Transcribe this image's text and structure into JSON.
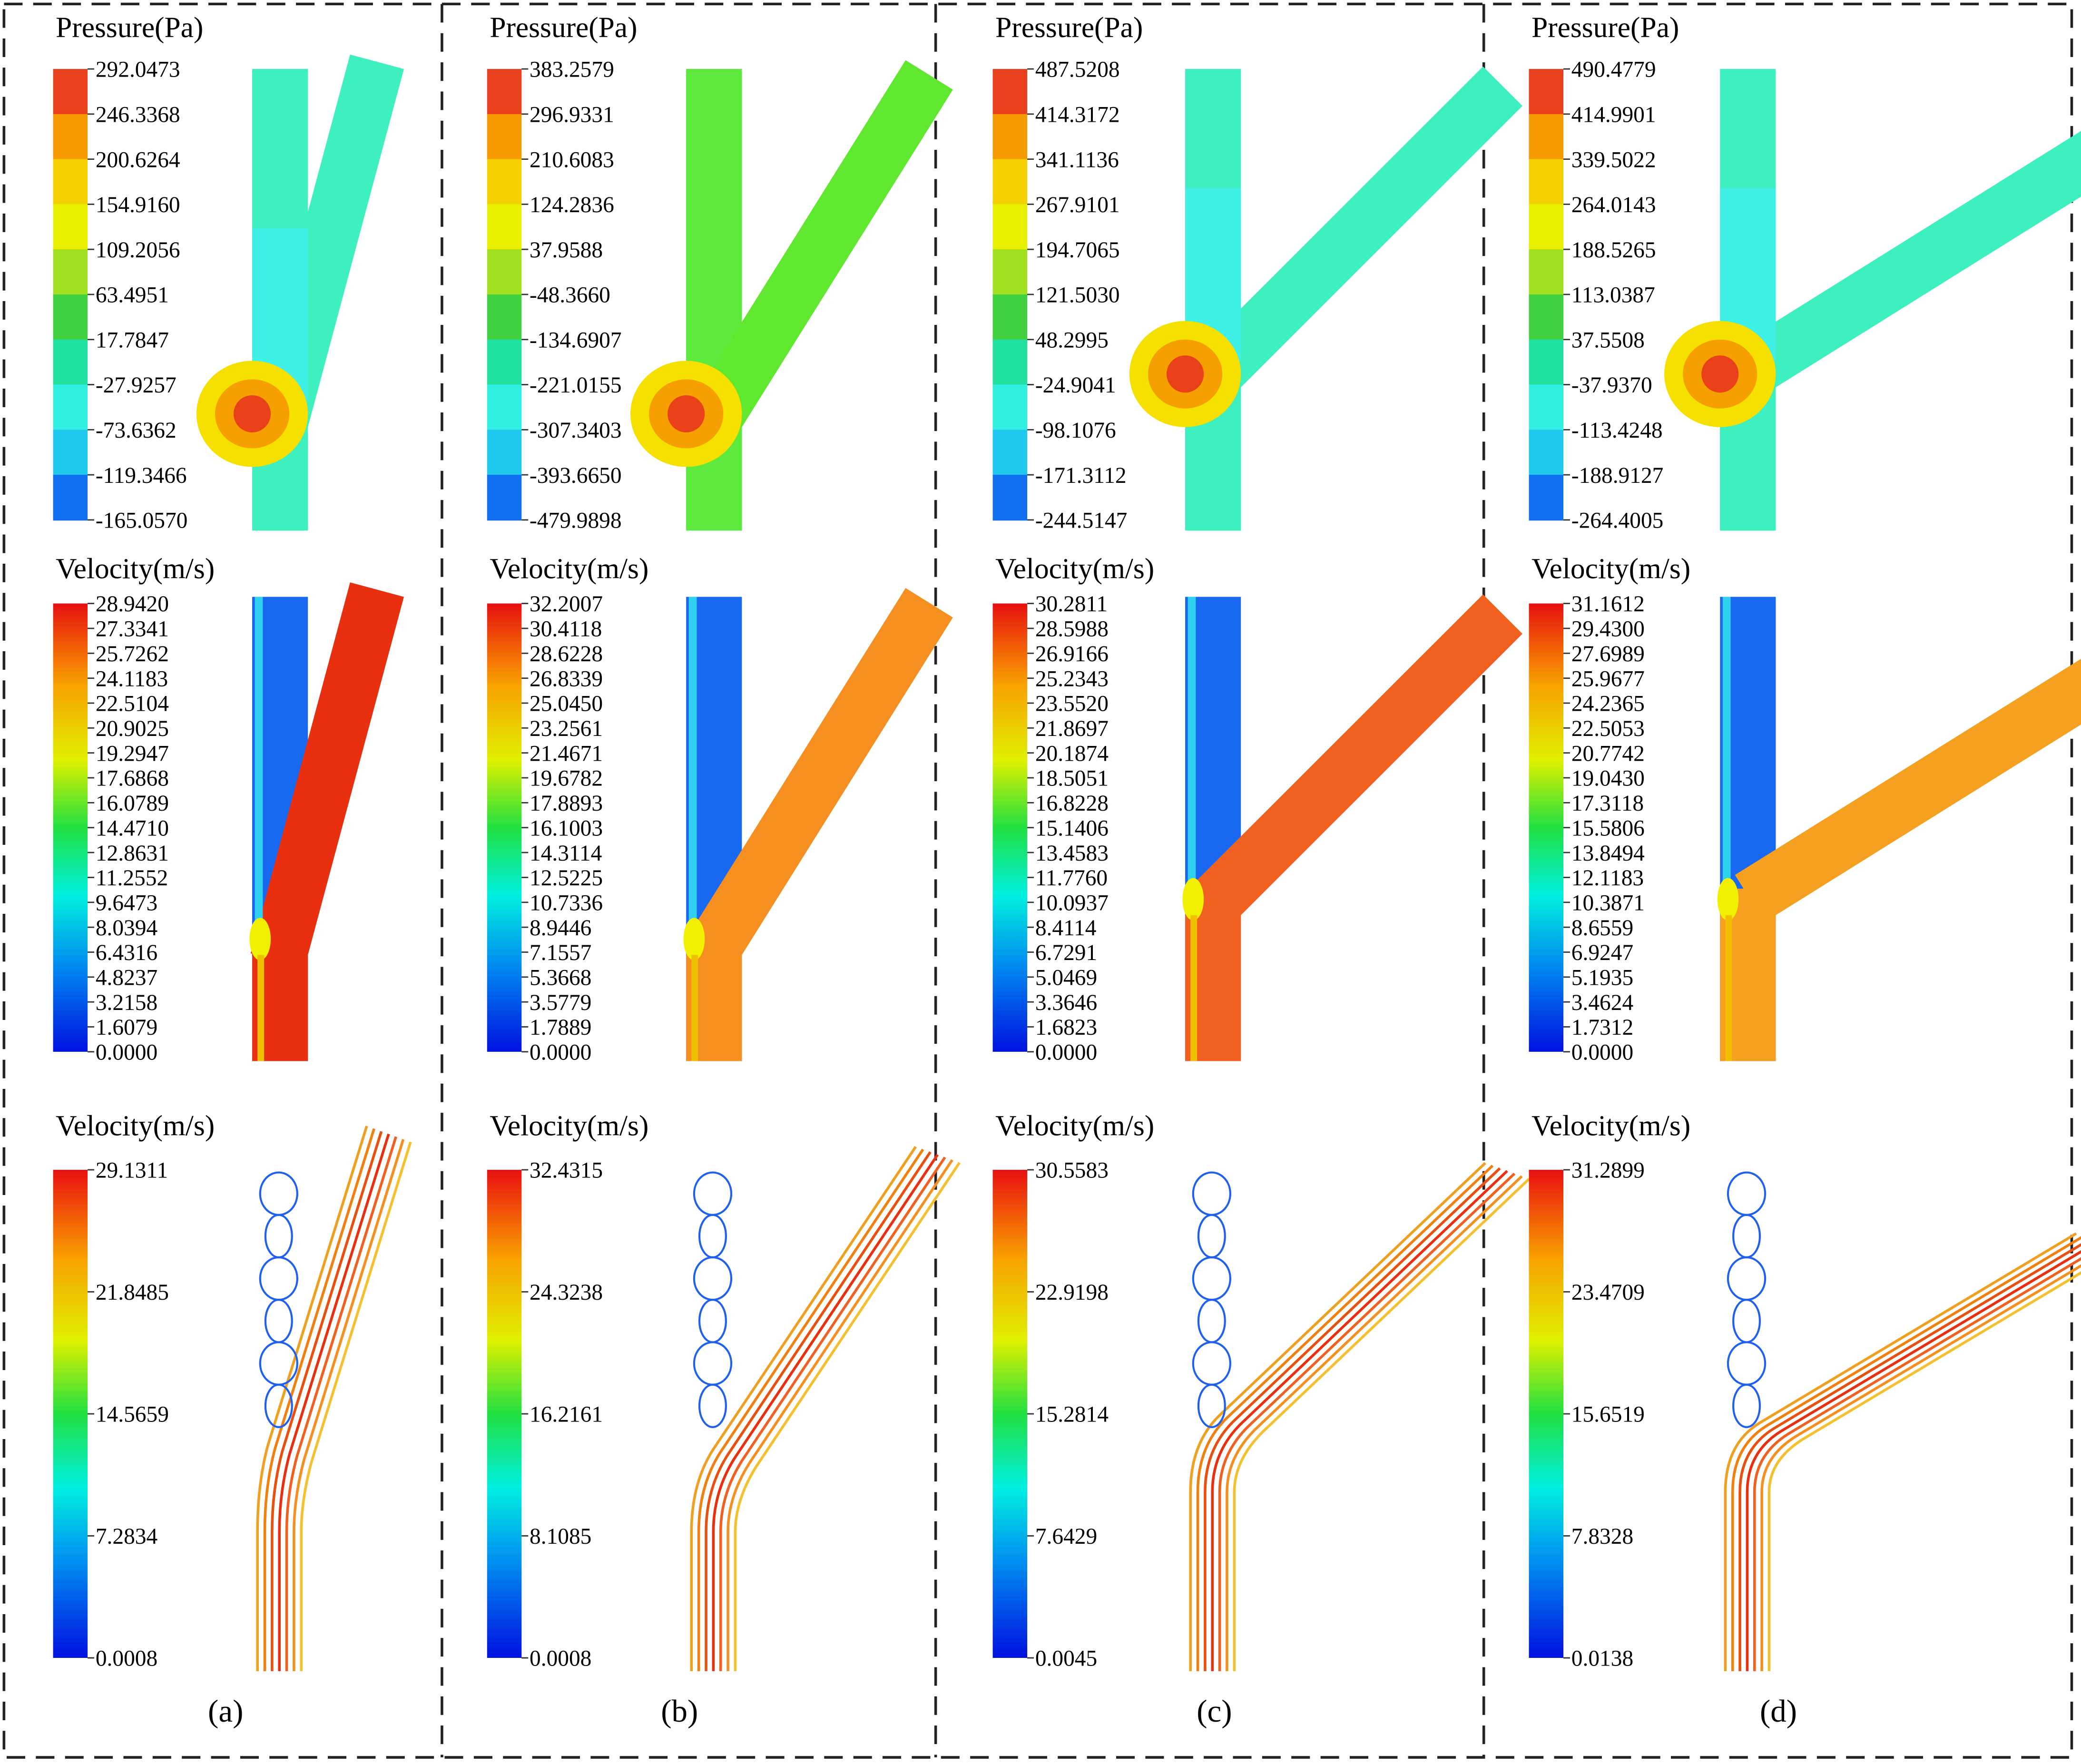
{
  "panels": [
    {
      "label": "(a)",
      "pressure": {
        "title": "Pressure(Pa)",
        "levels": [
          "292.0473",
          "246.3368",
          "200.6264",
          "154.9160",
          "109.2056",
          "63.4951",
          "17.7847",
          "-27.9257",
          "-73.6362",
          "-119.3466",
          "-165.0570"
        ]
      },
      "velocity": {
        "title": "Velocity(m/s)",
        "levels": [
          "28.9420",
          "27.3341",
          "25.7262",
          "24.1183",
          "22.5104",
          "20.9025",
          "19.2947",
          "17.6868",
          "16.0789",
          "14.4710",
          "12.8631",
          "11.2552",
          "9.6473",
          "8.0394",
          "6.4316",
          "4.8237",
          "3.2158",
          "1.6079",
          "0.0000"
        ]
      },
      "streamlines": {
        "title": "Velocity(m/s)",
        "levels": [
          "29.1311",
          "21.8485",
          "14.5659",
          "7.2834",
          "0.0008"
        ]
      }
    },
    {
      "label": "(b)",
      "pressure": {
        "title": "Pressure(Pa)",
        "levels": [
          "383.2579",
          "296.9331",
          "210.6083",
          "124.2836",
          "37.9588",
          "-48.3660",
          "-134.6907",
          "-221.0155",
          "-307.3403",
          "-393.6650",
          "-479.9898"
        ]
      },
      "velocity": {
        "title": "Velocity(m/s)",
        "levels": [
          "32.2007",
          "30.4118",
          "28.6228",
          "26.8339",
          "25.0450",
          "23.2561",
          "21.4671",
          "19.6782",
          "17.8893",
          "16.1003",
          "14.3114",
          "12.5225",
          "10.7336",
          "8.9446",
          "7.1557",
          "5.3668",
          "3.5779",
          "1.7889",
          "0.0000"
        ]
      },
      "streamlines": {
        "title": "Velocity(m/s)",
        "levels": [
          "32.4315",
          "24.3238",
          "16.2161",
          "8.1085",
          "0.0008"
        ]
      }
    },
    {
      "label": "(c)",
      "pressure": {
        "title": "Pressure(Pa)",
        "levels": [
          "487.5208",
          "414.3172",
          "341.1136",
          "267.9101",
          "194.7065",
          "121.5030",
          "48.2995",
          "-24.9041",
          "-98.1076",
          "-171.3112",
          "-244.5147"
        ]
      },
      "velocity": {
        "title": "Velocity(m/s)",
        "levels": [
          "30.2811",
          "28.5988",
          "26.9166",
          "25.2343",
          "23.5520",
          "21.8697",
          "20.1874",
          "18.5051",
          "16.8228",
          "15.1406",
          "13.4583",
          "11.7760",
          "10.0937",
          "8.4114",
          "6.7291",
          "5.0469",
          "3.3646",
          "1.6823",
          "0.0000"
        ]
      },
      "streamlines": {
        "title": "Velocity(m/s)",
        "levels": [
          "30.5583",
          "22.9198",
          "15.2814",
          "7.6429",
          "0.0045"
        ]
      }
    },
    {
      "label": "(d)",
      "pressure": {
        "title": "Pressure(Pa)",
        "levels": [
          "490.4779",
          "414.9901",
          "339.5022",
          "264.0143",
          "188.5265",
          "113.0387",
          "37.5508",
          "-37.9370",
          "-113.4248",
          "-188.9127",
          "-264.4005"
        ]
      },
      "velocity": {
        "title": "Velocity(m/s)",
        "levels": [
          "31.1612",
          "29.4300",
          "27.6989",
          "25.9677",
          "24.2365",
          "22.5053",
          "20.7742",
          "19.0430",
          "17.3118",
          "15.5806",
          "13.8494",
          "12.1183",
          "10.3871",
          "8.6559",
          "6.9247",
          "5.1935",
          "3.4624",
          "1.7312",
          "0.0000"
        ]
      },
      "streamlines": {
        "title": "Velocity(m/s)",
        "levels": [
          "31.2899",
          "23.4709",
          "15.6519",
          "7.8328",
          "0.0138"
        ]
      }
    }
  ]
}
